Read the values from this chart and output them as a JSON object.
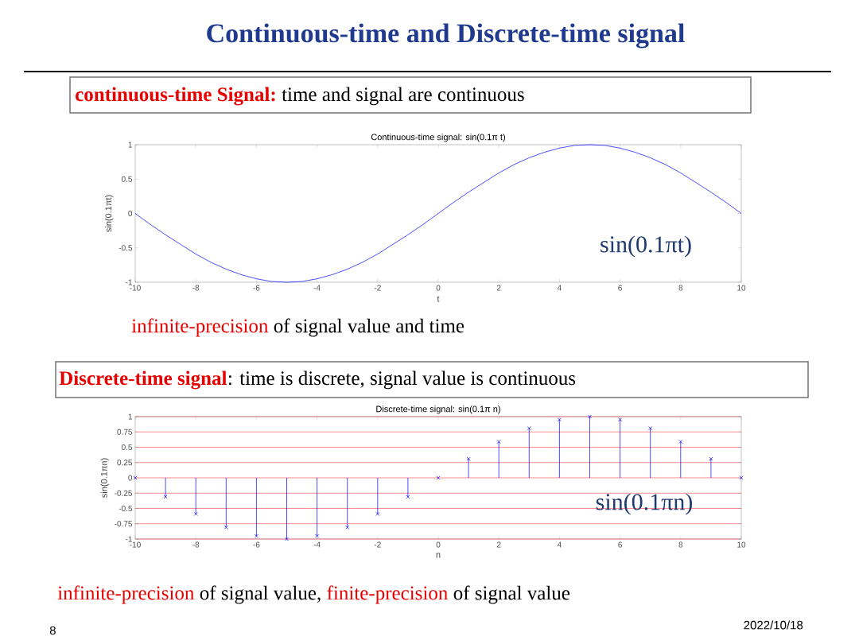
{
  "chart_data": [
    {
      "type": "line",
      "title": "Continuous-time signal: sin(0.1π t)",
      "xlabel": "t",
      "ylabel": "sin(0.1πt)",
      "color": "#0000ff",
      "x": [
        -10,
        -9.5,
        -9,
        -8.5,
        -8,
        -7.5,
        -7,
        -6.5,
        -6,
        -5.5,
        -5,
        -4.5,
        -4,
        -3.5,
        -3,
        -2.5,
        -2,
        -1.5,
        -1,
        -0.5,
        0,
        0.5,
        1,
        1.5,
        2,
        2.5,
        3,
        3.5,
        4,
        4.5,
        5,
        5.5,
        6,
        6.5,
        7,
        7.5,
        8,
        8.5,
        9,
        9.5,
        10
      ],
      "values": [
        0,
        -0.16,
        -0.31,
        -0.45,
        -0.59,
        -0.71,
        -0.81,
        -0.89,
        -0.95,
        -0.99,
        -1,
        -0.99,
        -0.95,
        -0.89,
        -0.81,
        -0.71,
        -0.59,
        -0.45,
        -0.31,
        -0.16,
        0,
        0.16,
        0.31,
        0.45,
        0.59,
        0.71,
        0.81,
        0.89,
        0.95,
        0.99,
        1,
        0.99,
        0.95,
        0.89,
        0.81,
        0.71,
        0.59,
        0.45,
        0.31,
        0.16,
        0
      ],
      "xlim": [
        -10,
        10
      ],
      "ylim": [
        -1,
        1
      ],
      "xticks": [
        -10,
        -8,
        -6,
        -4,
        -2,
        0,
        2,
        4,
        6,
        8,
        10
      ],
      "yticks": [
        -1,
        -0.5,
        0,
        0.5,
        1
      ],
      "annotations": [
        "Continuous-time and Discrete-time signal",
        "continuous-time Signal:",
        "time and signal are continuous",
        "sin(0.1πt)",
        "infinite-precision",
        "of signal value and time"
      ]
    },
    {
      "type": "lollipop",
      "title": "Discrete-time signal: sin(0.1π n)",
      "xlabel": "n",
      "ylabel": "sin(0.1πn)",
      "color": "#0000ff",
      "marker": "cross",
      "grid": "y",
      "x": [
        -10,
        -9,
        -8,
        -7,
        -6,
        -5,
        -4,
        -3,
        -2,
        -1,
        0,
        1,
        2,
        3,
        4,
        5,
        6,
        7,
        8,
        9,
        10
      ],
      "values": [
        0,
        -0.31,
        -0.59,
        -0.81,
        -0.95,
        -1,
        -0.95,
        -0.81,
        -0.59,
        -0.31,
        0,
        0.31,
        0.59,
        0.81,
        0.95,
        1,
        0.95,
        0.81,
        0.59,
        0.31,
        0
      ],
      "xlim": [
        -10,
        10
      ],
      "ylim": [
        -1,
        1
      ],
      "xticks": [
        -10,
        -8,
        -6,
        -4,
        -2,
        0,
        2,
        4,
        6,
        8,
        10
      ],
      "yticks": [
        -1,
        -0.75,
        -0.5,
        -0.25,
        0,
        0.25,
        0.5,
        0.75,
        1
      ],
      "annotations": [
        "Discrete-time signal",
        ": time is discrete, signal value is continuous",
        "sin(0.1πn)",
        "infinite-precision",
        "of signal value,",
        "finite-precision",
        "of signal value",
        "8",
        "2022/10/18"
      ]
    }
  ]
}
